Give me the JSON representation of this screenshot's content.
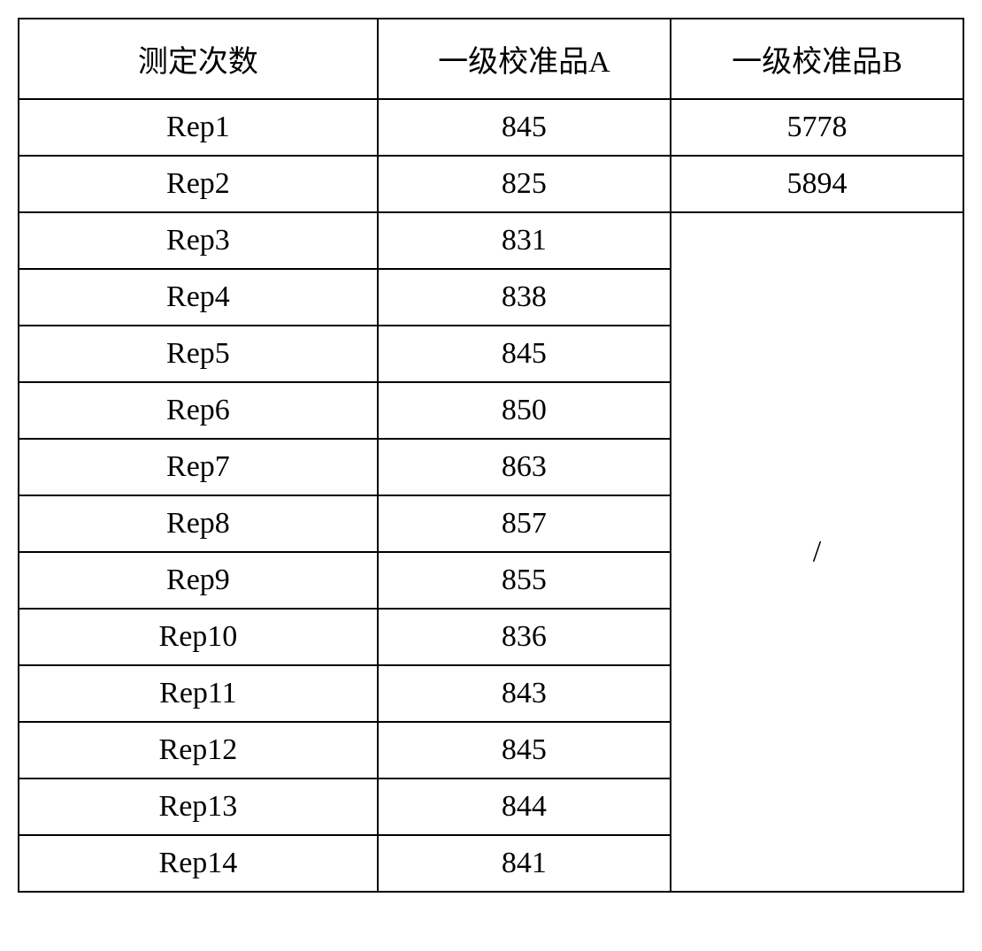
{
  "table": {
    "background_color": "#ffffff",
    "border_color": "#000000",
    "text_color": "#000000",
    "font_size": 34,
    "border_width": 2,
    "columns": [
      {
        "header": "测定次数",
        "key": "label"
      },
      {
        "header": "一级校准品A",
        "key": "colA"
      },
      {
        "header": "一级校准品B",
        "key": "colB"
      }
    ],
    "rows": [
      {
        "label": "Rep1",
        "colA": "845",
        "colB": "5778"
      },
      {
        "label": "Rep2",
        "colA": "825",
        "colB": "5894"
      },
      {
        "label": "Rep3",
        "colA": "831",
        "colB": null
      },
      {
        "label": "Rep4",
        "colA": "838",
        "colB": null
      },
      {
        "label": "Rep5",
        "colA": "845",
        "colB": null
      },
      {
        "label": "Rep6",
        "colA": "850",
        "colB": null
      },
      {
        "label": "Rep7",
        "colA": "863",
        "colB": null
      },
      {
        "label": "Rep8",
        "colA": "857",
        "colB": null
      },
      {
        "label": "Rep9",
        "colA": "855",
        "colB": null
      },
      {
        "label": "Rep10",
        "colA": "836",
        "colB": null
      },
      {
        "label": "Rep11",
        "colA": "843",
        "colB": null
      },
      {
        "label": "Rep12",
        "colA": "845",
        "colB": null
      },
      {
        "label": "Rep13",
        "colA": "844",
        "colB": null
      },
      {
        "label": "Rep14",
        "colA": "841",
        "colB": null
      }
    ],
    "merged_cell_value": "/",
    "merged_cell_rowspan": 12
  }
}
